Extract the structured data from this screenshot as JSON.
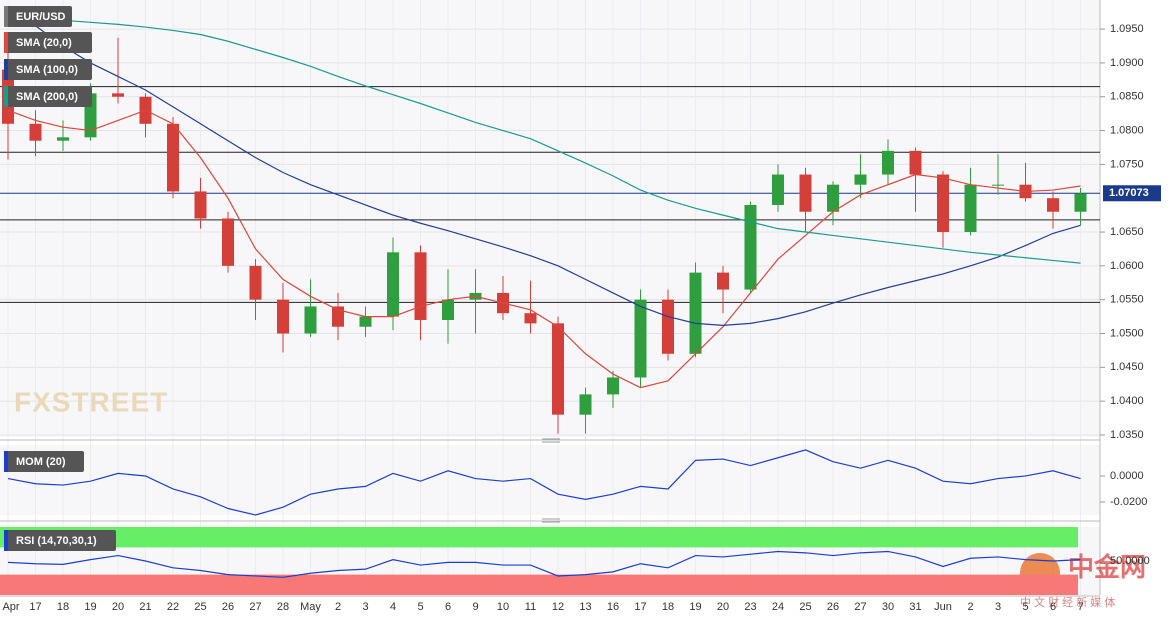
{
  "chart_data": [
    {
      "type": "candlestick",
      "title": "EUR/USD",
      "categories": [
        "Apr",
        "17",
        "18",
        "19",
        "20",
        "21",
        "22",
        "25",
        "26",
        "27",
        "28",
        "May",
        "2",
        "3",
        "4",
        "5",
        "6",
        "9",
        "10",
        "11",
        "12",
        "13",
        "16",
        "17",
        "18",
        "19",
        "20",
        "23",
        "24",
        "25",
        "26",
        "27",
        "30",
        "31",
        "Jun",
        "2",
        "3",
        "5",
        "6",
        "7"
      ],
      "open": [
        1.089,
        1.081,
        1.0785,
        1.079,
        1.0855,
        1.085,
        1.081,
        1.071,
        1.067,
        1.06,
        1.055,
        1.05,
        1.054,
        1.051,
        1.0525,
        1.062,
        1.052,
        1.055,
        1.056,
        1.053,
        1.0515,
        1.038,
        1.041,
        1.0435,
        1.055,
        1.047,
        1.059,
        1.0565,
        1.069,
        1.0735,
        1.068,
        1.072,
        1.0735,
        1.077,
        1.0735,
        1.065,
        1.072,
        1.072,
        1.07,
        1.068
      ],
      "high": [
        1.0925,
        1.083,
        1.0815,
        1.087,
        1.0937,
        1.0855,
        1.082,
        1.073,
        1.068,
        1.061,
        1.0575,
        1.058,
        1.056,
        1.054,
        1.0642,
        1.063,
        1.0595,
        1.0595,
        1.0585,
        1.0578,
        1.0525,
        1.042,
        1.0445,
        1.0565,
        1.0565,
        1.0605,
        1.06,
        1.0695,
        1.075,
        1.0745,
        1.0725,
        1.0765,
        1.0787,
        1.0775,
        1.074,
        1.0745,
        1.0765,
        1.0752,
        1.071,
        1.0715
      ],
      "low": [
        1.0757,
        1.0762,
        1.077,
        1.0785,
        1.084,
        1.079,
        1.07,
        1.0655,
        1.059,
        1.052,
        1.0472,
        1.0495,
        1.049,
        1.0495,
        1.0505,
        1.049,
        1.0485,
        1.05,
        1.052,
        1.05,
        1.0352,
        1.0352,
        1.039,
        1.042,
        1.046,
        1.0465,
        1.053,
        1.056,
        1.068,
        1.065,
        1.066,
        1.07,
        1.072,
        1.068,
        1.0627,
        1.0645,
        1.0705,
        1.0695,
        1.0655,
        1.066
      ],
      "close": [
        1.081,
        1.0785,
        1.079,
        1.0855,
        1.085,
        1.081,
        1.071,
        1.067,
        1.06,
        1.055,
        1.05,
        1.054,
        1.051,
        1.0525,
        1.062,
        1.052,
        1.055,
        1.056,
        1.053,
        1.0515,
        1.038,
        1.041,
        1.0435,
        1.055,
        1.047,
        1.059,
        1.0565,
        1.069,
        1.0735,
        1.068,
        1.072,
        1.0735,
        1.077,
        1.0735,
        1.065,
        1.072,
        1.072,
        1.07,
        1.068,
        1.0707
      ],
      "up_color": "#2e9e3e",
      "down_color": "#d43f3a",
      "lines": [
        {
          "name": "SMA (20,0)",
          "color": "#e0463b",
          "values": [
            1.083,
            1.0815,
            1.0805,
            1.08,
            1.0815,
            1.083,
            1.081,
            1.076,
            1.07,
            1.0625,
            1.058,
            1.0555,
            1.0535,
            1.0525,
            1.0525,
            1.054,
            1.055,
            1.0555,
            1.0545,
            1.0535,
            1.051,
            1.047,
            1.044,
            1.042,
            1.043,
            1.047,
            1.051,
            1.056,
            1.061,
            1.0645,
            1.068,
            1.0705,
            1.072,
            1.0735,
            1.073,
            1.072,
            1.0715,
            1.071,
            1.0712,
            1.0718
          ]
        },
        {
          "name": "SMA (100,0)",
          "color": "#1f3f99",
          "values": [
            1.098,
            1.0955,
            1.0925,
            1.09,
            1.088,
            1.086,
            1.0835,
            1.081,
            1.0785,
            1.076,
            1.0738,
            1.072,
            1.0705,
            1.069,
            1.0675,
            1.0663,
            1.0652,
            1.064,
            1.0628,
            1.0615,
            1.06,
            1.058,
            1.056,
            1.054,
            1.0525,
            1.0515,
            1.0512,
            1.0515,
            1.0522,
            1.0532,
            1.0545,
            1.0557,
            1.0568,
            1.0578,
            1.0588,
            1.06,
            1.0613,
            1.063,
            1.0648,
            1.066
          ]
        },
        {
          "name": "SMA (200,0)",
          "color": "#1a9c8c",
          "values": [
            1.0975,
            1.0968,
            1.0963,
            1.096,
            1.0957,
            1.0953,
            1.0948,
            1.0942,
            1.0932,
            1.092,
            1.0908,
            1.0895,
            1.088,
            1.0866,
            1.0853,
            1.084,
            1.0826,
            1.0812,
            1.08,
            1.0788,
            1.077,
            1.0752,
            1.0733,
            1.0712,
            1.0697,
            1.0685,
            1.0675,
            1.0665,
            1.0655,
            1.065,
            1.0645,
            1.064,
            1.0635,
            1.063,
            1.0625,
            1.062,
            1.0616,
            1.0612,
            1.0608,
            1.0604
          ]
        }
      ],
      "hlines": [
        1.0865,
        1.0768,
        1.0668,
        1.0546
      ],
      "last": {
        "value": 1.07073,
        "label": "1.07073",
        "color": "#1a3a8a"
      },
      "ylim": [
        1.0347,
        1.0993
      ],
      "yticks": [
        {
          "value": 1.095,
          "label": "1.0950"
        },
        {
          "value": 1.09,
          "label": "1.0900"
        },
        {
          "value": 1.085,
          "label": "1.0850"
        },
        {
          "value": 1.08,
          "label": "1.0800"
        },
        {
          "value": 1.075,
          "label": "1.0750"
        },
        {
          "value": 1.065,
          "label": "1.0650"
        },
        {
          "value": 1.06,
          "label": "1.0600"
        },
        {
          "value": 1.055,
          "label": "1.0550"
        },
        {
          "value": 1.05,
          "label": "1.0500"
        },
        {
          "value": 1.045,
          "label": "1.0450"
        },
        {
          "value": 1.04,
          "label": "1.0400"
        },
        {
          "value": 1.035,
          "label": "1.0350"
        }
      ],
      "grid": true
    },
    {
      "type": "line",
      "title": "MOM (20)",
      "color": "#1a3fd0",
      "values": [
        -0.002,
        -0.006,
        -0.007,
        -0.004,
        0.002,
        0.0,
        -0.01,
        -0.016,
        -0.025,
        -0.03,
        -0.024,
        -0.014,
        -0.01,
        -0.008,
        0.002,
        -0.004,
        0.004,
        -0.002,
        -0.004,
        -0.002,
        -0.014,
        -0.018,
        -0.014,
        -0.008,
        -0.01,
        0.012,
        0.013,
        0.008,
        0.014,
        0.02,
        0.011,
        0.006,
        0.012,
        0.006,
        -0.004,
        -0.006,
        -0.002,
        0.0,
        0.004,
        -0.002
      ],
      "ylim": [
        -0.03,
        0.0238
      ],
      "yticks": [
        {
          "value": 0,
          "label": "0.0000"
        },
        {
          "value": -0.02,
          "label": "-0.0200"
        }
      ]
    },
    {
      "type": "line",
      "title": "RSI (14,70,30,1)",
      "color": "#1a3fd0",
      "values": [
        48,
        46,
        45,
        52,
        58,
        50,
        40,
        36,
        30,
        28,
        26,
        32,
        36,
        38,
        52,
        44,
        48,
        48,
        44,
        44,
        28,
        30,
        34,
        46,
        40,
        58,
        56,
        60,
        64,
        62,
        58,
        62,
        64,
        56,
        42,
        54,
        56,
        52,
        50,
        52
      ],
      "upper_band": 70,
      "lower_band": 30,
      "upper_color": "#66ee66",
      "lower_color": "#f87878",
      "ylim": [
        0,
        100
      ],
      "yticks": [
        {
          "value": 50,
          "label": "50.0000"
        }
      ]
    }
  ],
  "watermarks": {
    "fxstreet": "FXSTREET",
    "cn_logo": "中金网",
    "cn_tagline": "中 文 财 经 新 媒 体"
  }
}
